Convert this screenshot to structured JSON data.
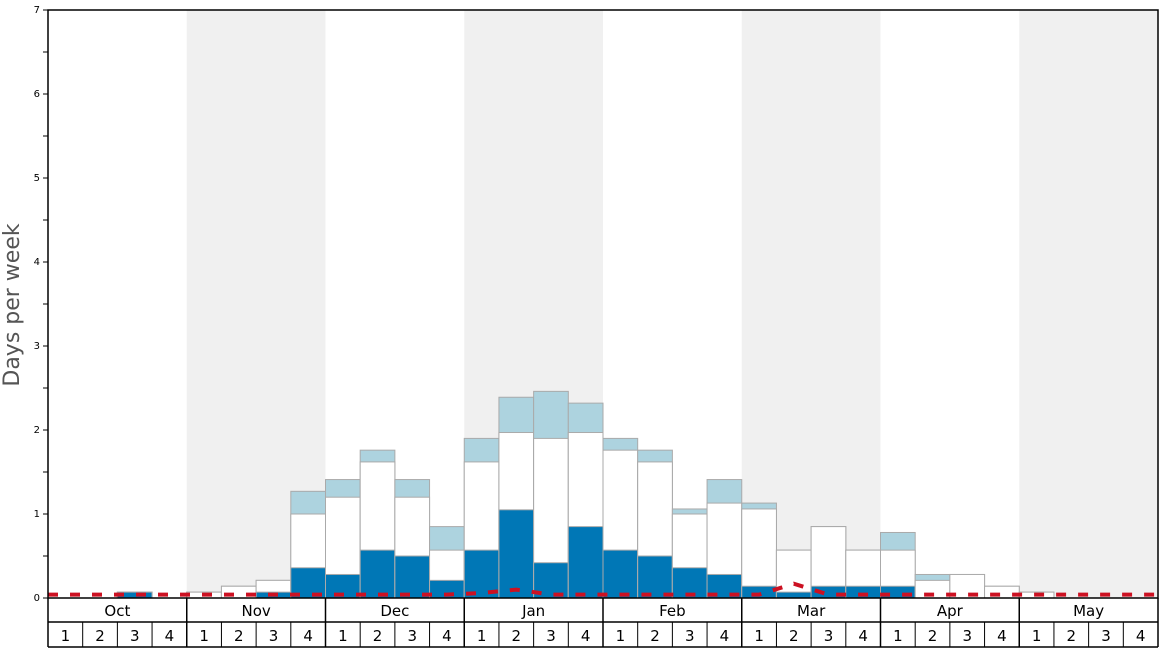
{
  "chart_data": {
    "type": "bar",
    "ylabel": "Days per week",
    "ylim": [
      0,
      7
    ],
    "yticks": [
      0,
      1,
      2,
      3,
      4,
      5,
      6,
      7
    ],
    "months": [
      "Oct",
      "Nov",
      "Dec",
      "Jan",
      "Feb",
      "Mar",
      "Apr",
      "May"
    ],
    "weeks": [
      "1",
      "2",
      "3",
      "4"
    ],
    "grid": false,
    "series": [
      {
        "color": "#0077b6",
        "values": [
          0,
          0,
          0.07,
          0,
          0,
          0,
          0.07,
          0.36,
          0.28,
          0.57,
          0.5,
          0.21,
          0.57,
          1.05,
          0.42,
          0.85,
          0.57,
          0.5,
          0.36,
          0.28,
          0.14,
          0.07,
          0.14,
          0.14,
          0.14,
          0,
          0,
          0,
          0,
          0,
          0,
          0
        ]
      },
      {
        "color": "#ffffff",
        "values": [
          0,
          0,
          0.07,
          0,
          0.07,
          0.14,
          0.21,
          1.0,
          1.2,
          1.62,
          1.2,
          0.57,
          1.62,
          1.97,
          1.9,
          1.97,
          1.76,
          1.62,
          1.0,
          1.13,
          1.06,
          0.57,
          0.85,
          0.57,
          0.57,
          0.21,
          0.28,
          0.14,
          0.07,
          0,
          0,
          0
        ]
      },
      {
        "color": "#add3df",
        "values": [
          0,
          0,
          0.07,
          0,
          0.07,
          0.14,
          0.21,
          1.27,
          1.41,
          1.76,
          1.41,
          0.85,
          1.9,
          2.39,
          2.46,
          2.32,
          1.9,
          1.76,
          1.06,
          1.41,
          1.13,
          0.57,
          0.85,
          0.57,
          0.78,
          0.28,
          0.28,
          0.14,
          0.07,
          0,
          0,
          0
        ]
      }
    ],
    "line": {
      "color": "#cc1122",
      "style": "dashed",
      "values": [
        0.04,
        0.04,
        0.04,
        0.04,
        0.04,
        0.04,
        0.04,
        0.04,
        0.04,
        0.04,
        0.04,
        0.04,
        0.06,
        0.1,
        0.04,
        0.04,
        0.04,
        0.04,
        0.04,
        0.04,
        0.04,
        0.17,
        0.04,
        0.04,
        0.04,
        0.04,
        0.04,
        0.04,
        0.04,
        0.04,
        0.04,
        0.04
      ]
    },
    "colors": {
      "band_alt": "#f0f0f0",
      "bar_outline": "#aaaaaa"
    }
  }
}
